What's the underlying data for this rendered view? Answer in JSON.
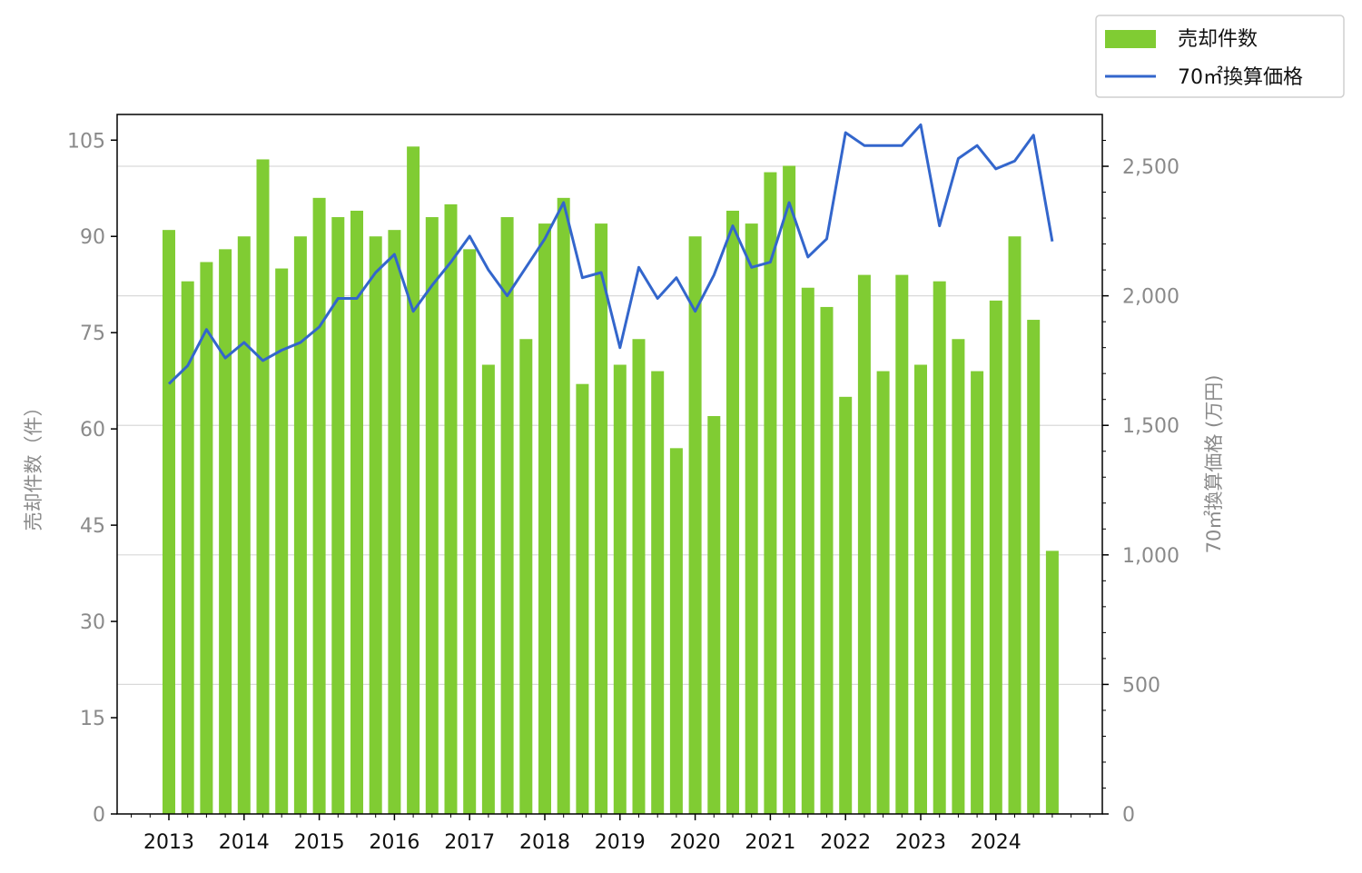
{
  "chart_data": {
    "type": "bar+line",
    "x": [
      "2013-Q1",
      "2013-Q2",
      "2013-Q3",
      "2013-Q4",
      "2014-Q1",
      "2014-Q2",
      "2014-Q3",
      "2014-Q4",
      "2015-Q1",
      "2015-Q2",
      "2015-Q3",
      "2015-Q4",
      "2016-Q1",
      "2016-Q2",
      "2016-Q3",
      "2016-Q4",
      "2017-Q1",
      "2017-Q2",
      "2017-Q3",
      "2017-Q4",
      "2018-Q1",
      "2018-Q2",
      "2018-Q3",
      "2018-Q4",
      "2019-Q1",
      "2019-Q2",
      "2019-Q3",
      "2019-Q4",
      "2020-Q1",
      "2020-Q2",
      "2020-Q3",
      "2020-Q4",
      "2021-Q1",
      "2021-Q2",
      "2021-Q3",
      "2021-Q4",
      "2022-Q1",
      "2022-Q2",
      "2022-Q3",
      "2022-Q4",
      "2023-Q1",
      "2023-Q2",
      "2023-Q3",
      "2023-Q4",
      "2024-Q1",
      "2024-Q2",
      "2024-Q3",
      "2024-Q4"
    ],
    "x_tick_labels": [
      "2013",
      "2014",
      "2015",
      "2016",
      "2017",
      "2018",
      "2019",
      "2020",
      "2021",
      "2022",
      "2023",
      "2024"
    ],
    "series": [
      {
        "name": "売却件数",
        "kind": "bar",
        "axis": "left",
        "color": "#80cc33",
        "values": [
          91,
          83,
          86,
          88,
          90,
          102,
          85,
          90,
          96,
          93,
          94,
          90,
          91,
          104,
          93,
          95,
          88,
          70,
          93,
          74,
          92,
          96,
          67,
          92,
          70,
          74,
          69,
          57,
          90,
          62,
          94,
          92,
          100,
          101,
          82,
          79,
          65,
          84,
          69,
          84,
          70,
          83,
          74,
          69,
          80,
          90,
          77,
          41
        ]
      },
      {
        "name": "70㎡換算価格",
        "kind": "line",
        "axis": "right",
        "color": "#3366cc",
        "values": [
          1660,
          1730,
          1870,
          1760,
          1820,
          1750,
          1790,
          1820,
          1880,
          1990,
          1990,
          2090,
          2160,
          1940,
          2040,
          2130,
          2230,
          2100,
          2000,
          2110,
          2220,
          2360,
          2070,
          2090,
          1800,
          2110,
          1990,
          2070,
          1940,
          2080,
          2270,
          2110,
          2130,
          2360,
          2150,
          2220,
          2630,
          2580,
          2580,
          2580,
          2660,
          2270,
          2530,
          2580,
          2490,
          2520,
          2620,
          2210
        ]
      }
    ],
    "y_left": {
      "label": "売却件数（件）",
      "min": 0,
      "max": 109,
      "ticks": [
        0,
        15,
        30,
        45,
        60,
        75,
        90,
        105
      ],
      "tick_labels": [
        "0",
        "15",
        "30",
        "45",
        "60",
        "75",
        "90",
        "105"
      ]
    },
    "y_right": {
      "label": "70㎡換算価格 (万円)",
      "min": 0,
      "max": 2700,
      "ticks": [
        0,
        500,
        1000,
        1500,
        2000,
        2500
      ],
      "tick_labels": [
        "0",
        "500",
        "1,000",
        "1,500",
        "2,000",
        "2,500"
      ]
    },
    "grid": "horizontal (right axis)",
    "legend": {
      "position": "top-right, outside"
    }
  }
}
